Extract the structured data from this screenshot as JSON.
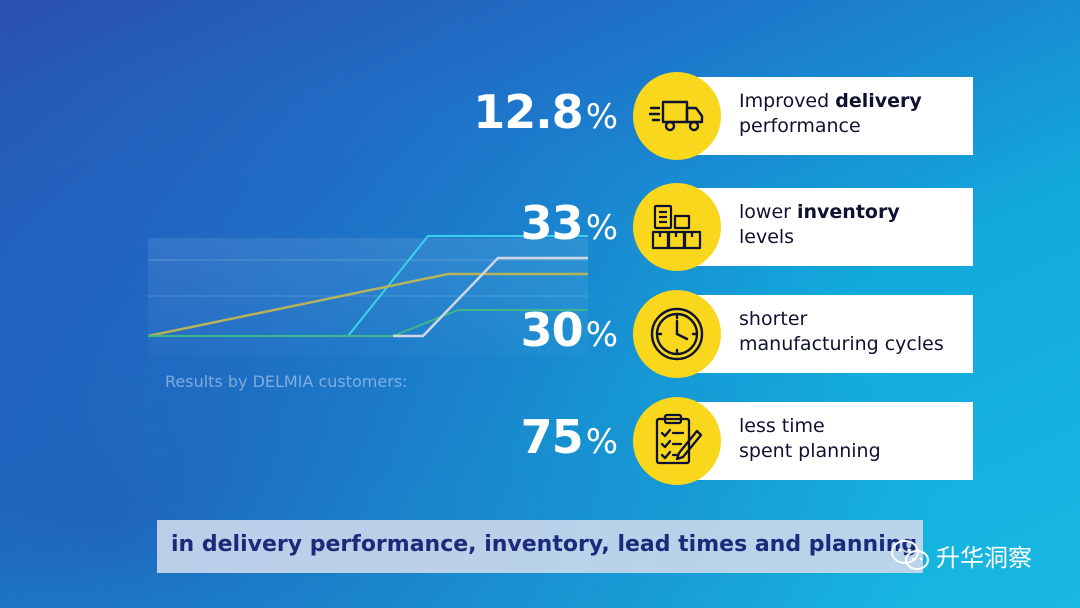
{
  "caption": "Results by DELMIA customers:",
  "stats": [
    {
      "value": "12.8",
      "symbol": "%",
      "label_pre": "Improved ",
      "label_bold": "delivery",
      "label_post": "\nperformance",
      "icon": "delivery-truck-icon"
    },
    {
      "value": "33",
      "symbol": "%",
      "label_pre": "lower ",
      "label_bold": "inventory",
      "label_post": "\nlevels",
      "icon": "inventory-boxes-icon"
    },
    {
      "value": "30",
      "symbol": "%",
      "label_pre": "shorter\nmanufacturing cycles",
      "label_bold": "",
      "label_post": "",
      "icon": "clock-icon"
    },
    {
      "value": "75",
      "symbol": "%",
      "label_pre": "less time\nspent planning",
      "label_bold": "",
      "label_post": "",
      "icon": "clipboard-checklist-icon"
    }
  ],
  "banner": "in delivery performance, inventory, lead times and planning",
  "watermark": "升华洞察",
  "colors": {
    "accent_yellow": "#f9d71c",
    "banner_text": "#1c2a7a",
    "card_text": "#0e1230"
  }
}
